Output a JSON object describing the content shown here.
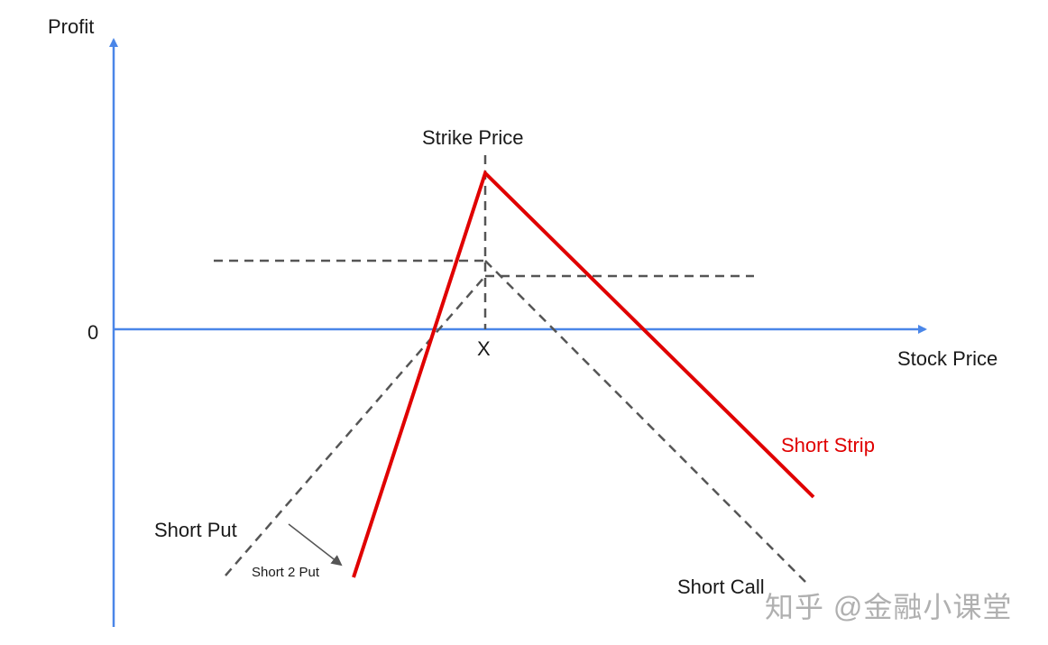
{
  "axes": {
    "y_label": "Profit",
    "x_label": "Stock Price",
    "zero_label": "0",
    "strike_tick": "X",
    "color": "#4a86e8"
  },
  "annotations": {
    "strike_price": "Strike Price",
    "short_put": "Short Put",
    "short_2_put": "Short 2 Put",
    "short_call": "Short Call",
    "short_strip": "Short Strip"
  },
  "colors": {
    "short_strip": "#e00000",
    "dashed_lines": "#555555"
  },
  "watermark": "知乎 @金融小课堂"
}
